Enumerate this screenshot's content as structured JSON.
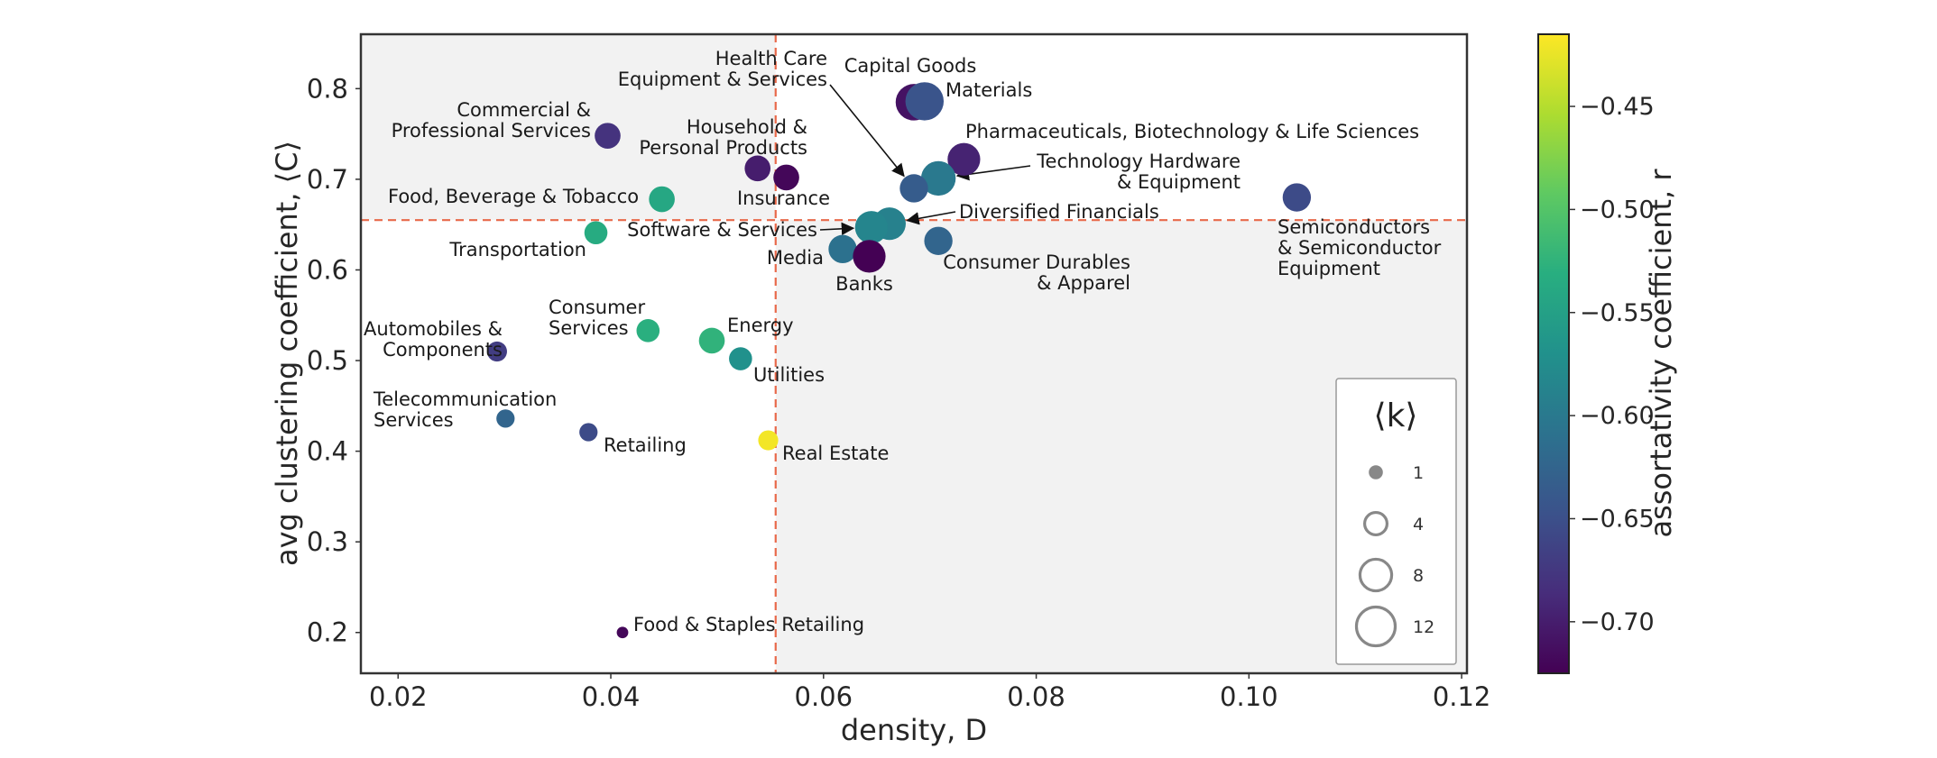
{
  "chart_data": {
    "type": "scatter",
    "title": "",
    "xlabel": "density, D",
    "ylabel": "avg clustering coefficient, ⟨C⟩",
    "xlim": [
      0.0165,
      0.1205
    ],
    "ylim": [
      0.155,
      0.86
    ],
    "x_ticks": [
      0.02,
      0.04,
      0.06,
      0.08,
      0.1,
      0.12
    ],
    "x_tick_labels": [
      "0.02",
      "0.04",
      "0.06",
      "0.08",
      "0.10",
      "0.12"
    ],
    "y_ticks": [
      0.2,
      0.3,
      0.4,
      0.5,
      0.6,
      0.7,
      0.8
    ],
    "y_tick_labels": [
      "0.2",
      "0.3",
      "0.4",
      "0.5",
      "0.6",
      "0.7",
      "0.8"
    ],
    "threshold_x": 0.0555,
    "threshold_y": 0.655,
    "quadrant_shading": "top-left and bottom-right shaded light gray",
    "grid": false,
    "colorbar": {
      "label": "assortativity coefficient, r",
      "colormap": "viridis",
      "range": [
        -0.725,
        -0.415
      ],
      "ticks": [
        -0.45,
        -0.5,
        -0.55,
        -0.6,
        -0.65,
        -0.7
      ],
      "tick_labels": [
        "−0.45",
        "−0.50",
        "−0.55",
        "−0.60",
        "−0.65",
        "−0.70"
      ]
    },
    "size_legend": {
      "title": "⟨k⟩",
      "placement": "bottom-right",
      "values": [
        1,
        4,
        8,
        12
      ],
      "labels": [
        "1",
        "4",
        "8",
        "12"
      ]
    },
    "points": [
      {
        "label": "Capital Goods",
        "x": 0.0685,
        "y": 0.785,
        "k": 10,
        "r": -0.71
      },
      {
        "label": "Materials",
        "x": 0.0695,
        "y": 0.786,
        "k": 11,
        "r": -0.645
      },
      {
        "label": "Pharmaceuticals, Biotechnology & Life Sciences",
        "x": 0.0732,
        "y": 0.722,
        "k": 8,
        "r": -0.695
      },
      {
        "label": "Technology Hardware & Equipment",
        "x": 0.0708,
        "y": 0.701,
        "k": 9,
        "r": -0.6
      },
      {
        "label": "Health Care Equipment & Services",
        "x": 0.0685,
        "y": 0.69,
        "k": 6,
        "r": -0.635
      },
      {
        "label": "Semiconductors & Semiconductor Equipment",
        "x": 0.1045,
        "y": 0.68,
        "k": 6,
        "r": -0.655
      },
      {
        "label": "Diversified Financials",
        "x": 0.0662,
        "y": 0.651,
        "k": 8,
        "r": -0.59
      },
      {
        "label": "Software & Services",
        "x": 0.0645,
        "y": 0.647,
        "k": 8,
        "r": -0.585
      },
      {
        "label": "Consumer Durables & Apparel",
        "x": 0.0708,
        "y": 0.632,
        "k": 6,
        "r": -0.625
      },
      {
        "label": "Media",
        "x": 0.0618,
        "y": 0.623,
        "k": 6,
        "r": -0.61
      },
      {
        "label": "Banks",
        "x": 0.0643,
        "y": 0.615,
        "k": 8,
        "r": -0.725
      },
      {
        "label": "Commercial & Professional Services",
        "x": 0.0397,
        "y": 0.748,
        "k": 5,
        "r": -0.68
      },
      {
        "label": "Household & Personal Products",
        "x": 0.0538,
        "y": 0.712,
        "k": 5,
        "r": -0.7
      },
      {
        "label": "Insurance",
        "x": 0.0565,
        "y": 0.702,
        "k": 5,
        "r": -0.72
      },
      {
        "label": "Food, Beverage & Tobacco",
        "x": 0.0448,
        "y": 0.678,
        "k": 5,
        "r": -0.54
      },
      {
        "label": "Transportation",
        "x": 0.0386,
        "y": 0.641,
        "k": 4,
        "r": -0.535
      },
      {
        "label": "Consumer Services",
        "x": 0.0435,
        "y": 0.533,
        "k": 4,
        "r": -0.53
      },
      {
        "label": "Energy",
        "x": 0.0495,
        "y": 0.522,
        "k": 5,
        "r": -0.525
      },
      {
        "label": "Utilities",
        "x": 0.0522,
        "y": 0.502,
        "k": 4,
        "r": -0.57
      },
      {
        "label": "Automobiles & Components",
        "x": 0.0293,
        "y": 0.51,
        "k": 3,
        "r": -0.67
      },
      {
        "label": "Telecommunication Services",
        "x": 0.0301,
        "y": 0.436,
        "k": 2.5,
        "r": -0.625
      },
      {
        "label": "Retailing",
        "x": 0.0379,
        "y": 0.421,
        "k": 2.5,
        "r": -0.655
      },
      {
        "label": "Real Estate",
        "x": 0.0548,
        "y": 0.412,
        "k": 3,
        "r": -0.42
      },
      {
        "label": "Food & Staples Retailing",
        "x": 0.0411,
        "y": 0.2,
        "k": 1,
        "r": -0.72
      }
    ]
  },
  "annotations": [
    {
      "id": "capital_goods",
      "lines": [
        "Capital Goods"
      ]
    },
    {
      "id": "materials",
      "lines": [
        "Materials"
      ]
    },
    {
      "id": "health_care",
      "lines": [
        "Health Care",
        "Equipment & Services"
      ]
    },
    {
      "id": "commercial",
      "lines": [
        "Commercial  &",
        "Professional Services"
      ]
    },
    {
      "id": "household",
      "lines": [
        "Household &",
        "Personal Products"
      ]
    },
    {
      "id": "pharma",
      "lines": [
        "Pharmaceuticals, Biotechnology & Life Sciences"
      ]
    },
    {
      "id": "tech_hw",
      "lines": [
        "Technology Hardware",
        "& Equipment"
      ]
    },
    {
      "id": "food_bev",
      "lines": [
        "Food, Beverage & Tobacco"
      ]
    },
    {
      "id": "insurance",
      "lines": [
        "Insurance"
      ]
    },
    {
      "id": "diversified",
      "lines": [
        "Diversified Financials"
      ]
    },
    {
      "id": "software",
      "lines": [
        "Software & Services"
      ]
    },
    {
      "id": "transportation",
      "lines": [
        "Transportation"
      ]
    },
    {
      "id": "media",
      "lines": [
        "Media"
      ]
    },
    {
      "id": "banks",
      "lines": [
        "Banks"
      ]
    },
    {
      "id": "consumer_durables",
      "lines": [
        "Consumer Durables",
        "& Apparel"
      ]
    },
    {
      "id": "semis",
      "lines": [
        "Semiconductors",
        "& Semiconductor",
        "Equipment"
      ]
    },
    {
      "id": "consumer_services",
      "lines": [
        "Consumer",
        "Services"
      ]
    },
    {
      "id": "energy",
      "lines": [
        "Energy"
      ]
    },
    {
      "id": "automobiles",
      "lines": [
        "Automobiles &",
        "Components"
      ]
    },
    {
      "id": "utilities",
      "lines": [
        "Utilities"
      ]
    },
    {
      "id": "telecom",
      "lines": [
        "Telecommunication",
        "Services"
      ]
    },
    {
      "id": "retailing",
      "lines": [
        "Retailing"
      ]
    },
    {
      "id": "real_estate",
      "lines": [
        "Real Estate"
      ]
    },
    {
      "id": "food_staples",
      "lines": [
        "Food & Staples Retailing"
      ]
    }
  ],
  "colors": {
    "threshold_line": "#e8694a",
    "quadrant_fill": "#f2f2f2",
    "axis": "#333333"
  }
}
